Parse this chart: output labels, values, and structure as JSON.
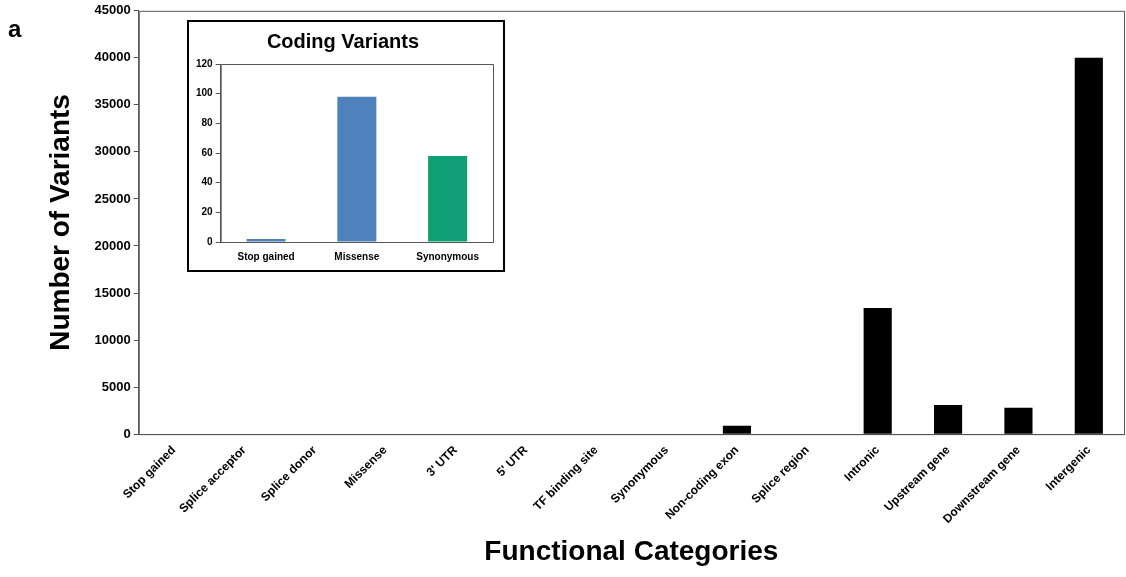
{
  "chart_data": [
    {
      "type": "bar",
      "xlabel": "Functional Categories",
      "ylabel": "Number of Variants",
      "annotations": [
        "a"
      ],
      "categories": [
        "Stop gained",
        "Splice acceptor",
        "Splice donor",
        "Missense",
        "3' UTR",
        "5' UTR",
        "TF binding site",
        "Synonymous",
        "Non-coding exon",
        "Splice region",
        "Intronic",
        "Upstream gene",
        "Downstream gene",
        "Intergenic"
      ],
      "values": [
        0,
        0,
        0,
        0,
        0,
        0,
        0,
        0,
        900,
        0,
        13400,
        3100,
        2800,
        40000
      ],
      "color": "#000000",
      "ylim": [
        0,
        45000
      ],
      "yticks": [
        0,
        5000,
        10000,
        15000,
        20000,
        25000,
        30000,
        35000,
        40000,
        45000
      ]
    },
    {
      "type": "bar",
      "title": "Coding Variants",
      "categories": [
        "Stop gained",
        "Missense",
        "Synonymous"
      ],
      "values": [
        2,
        98,
        58
      ],
      "colors": [
        "#4f81bd",
        "#4f81bd",
        "#0f9f74"
      ],
      "ylim": [
        0,
        120
      ],
      "yticks": [
        0,
        20,
        40,
        60,
        80,
        100,
        120
      ]
    }
  ]
}
